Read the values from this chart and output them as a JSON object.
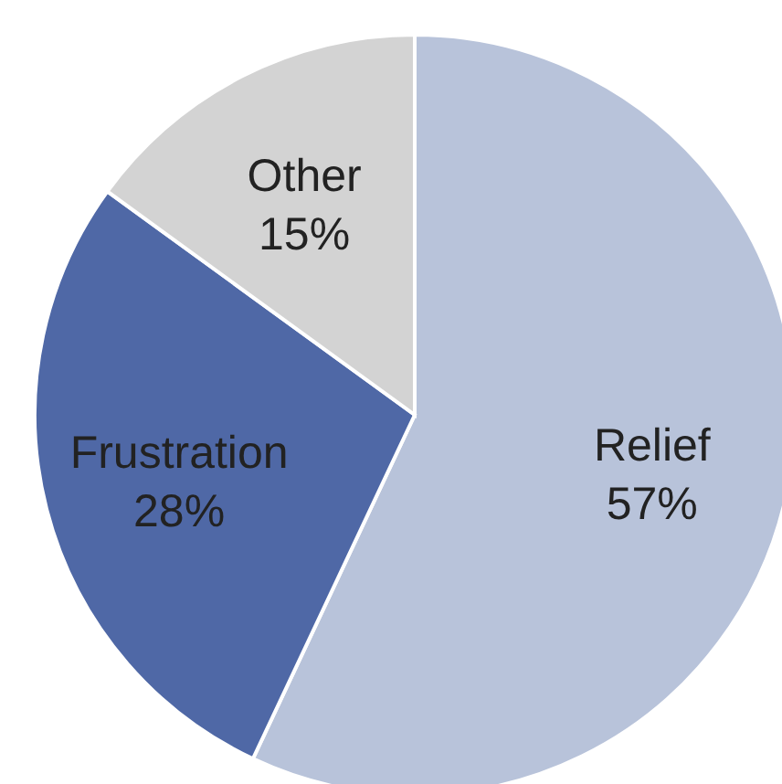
{
  "chart_data": {
    "type": "pie",
    "categories": [
      "Relief",
      "Frustration",
      "Other"
    ],
    "values": [
      57,
      28,
      15
    ],
    "value_labels": [
      "57%",
      "28%",
      "15%"
    ],
    "colors": [
      "#b8c3da",
      "#4f68a6",
      "#d3d3d3"
    ]
  }
}
